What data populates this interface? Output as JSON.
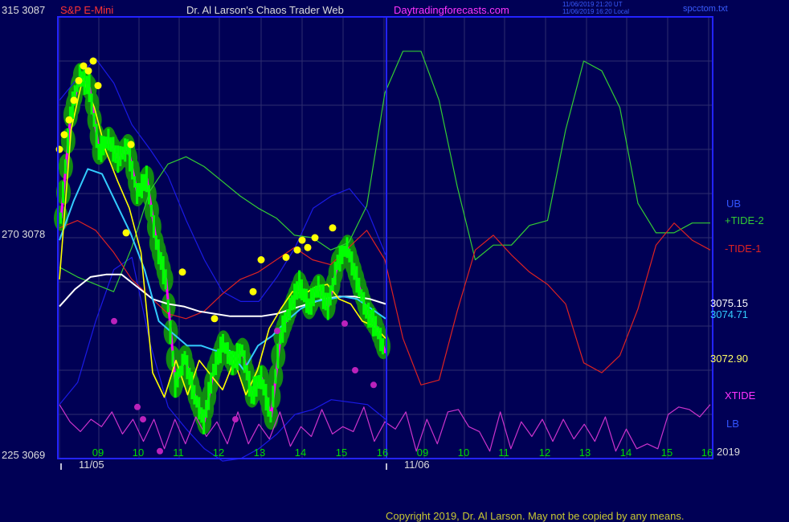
{
  "header": {
    "left_scale": "315  3087",
    "symbol": "S&P E-Mini",
    "title": "Dr. Al Larson's Chaos Trader Web",
    "site": "Daytradingforecasts.com",
    "stamp_utc": "11/06/2019 21:20 UT",
    "stamp_local": "11/06/2019 16:20 Local",
    "file": "spcctom.txt"
  },
  "left_axis": {
    "mid": "270  3078",
    "bottom": "225  3069"
  },
  "right_labels": {
    "ub": "UB",
    "tide2": "+TIDE-2",
    "tide1": "-TIDE-1",
    "white_val": "3075.15",
    "cyan_val": "3074.71",
    "low_val": "3072.90",
    "xtide": "XTIDE",
    "lb": "LB",
    "year": "2019"
  },
  "x_axis": {
    "hours": [
      "09",
      "10",
      "11",
      "12",
      "13",
      "14",
      "15",
      "16",
      "09",
      "10",
      "11",
      "12",
      "13",
      "14",
      "15",
      "16"
    ],
    "dates": [
      "11/05",
      "11/06"
    ]
  },
  "copyright": "Copyright 2019, Dr. Al Larson. May not be copied by any means.",
  "colors": {
    "background": "#000055",
    "frame": "#2323ff",
    "grid": "#2e2e70",
    "price": "#ff00ff",
    "bars": "#00ff00",
    "halo": "#118a11",
    "yellow": "#ffff00",
    "cyan": "#33ccff",
    "white": "#ffffff",
    "tide2": "#33cc33",
    "tide1": "#dd2222",
    "xtide": "#cc33cc",
    "bands": "#1a1ae6",
    "magenta_dot": "#bb22bb"
  },
  "chart_data": {
    "type": "line",
    "title": "S&P E-Mini",
    "ylim": [
      3069,
      3087
    ],
    "y_ticks": [
      3069,
      3078,
      3087
    ],
    "x_label_ticks": [
      "09",
      "10",
      "11",
      "12",
      "13",
      "14",
      "15",
      "16",
      "09",
      "10",
      "11",
      "12",
      "13",
      "14",
      "15",
      "16"
    ],
    "last_values": {
      "white": 3075.15,
      "cyan": 3074.71,
      "low": 3072.9
    },
    "series": [
      {
        "name": "+TIDE-2",
        "values": [
          3076.8,
          3076.4,
          3076.1,
          3075.8,
          3077.6,
          3079.9,
          3081.0,
          3081.3,
          3080.9,
          3080.3,
          3079.7,
          3079.2,
          3078.8,
          3078.1,
          3078.0,
          3077.5,
          3077.8,
          3079.3,
          3083.9,
          3085.6,
          3085.6,
          3083.6,
          3080.1,
          3077.1,
          3077.7,
          3077.7,
          3078.5,
          3078.7,
          3082.4,
          3085.2,
          3084.8,
          3083.3,
          3079.4,
          3078.2,
          3078.2,
          3078.6,
          3078.6
        ]
      },
      {
        "name": "-TIDE-1",
        "values": [
          3078.4,
          3078.7,
          3078.3,
          3077.4,
          3076.3,
          3075.6,
          3074.9,
          3074.7,
          3075.0,
          3075.7,
          3076.3,
          3076.6,
          3077.1,
          3077.6,
          3077.1,
          3076.9,
          3077.6,
          3078.3,
          3077.1,
          3073.9,
          3072.0,
          3072.2,
          3075.0,
          3077.5,
          3078.1,
          3077.3,
          3076.6,
          3076.1,
          3075.3,
          3072.9,
          3072.5,
          3073.2,
          3075.1,
          3077.7,
          3078.6,
          3077.9,
          3077.5
        ]
      },
      {
        "name": "UB",
        "values": [
          3083.6,
          3084.5,
          3085.3,
          3084.3,
          3082.6,
          3081.6,
          3080.5,
          3078.7,
          3077.1,
          3075.8,
          3075.4,
          3075.4,
          3076.4,
          3077.6,
          3079.2,
          3079.7,
          3080.0,
          3079.1,
          3077.3
        ]
      },
      {
        "name": "LB",
        "values": [
          3071.2,
          3072.1,
          3074.6,
          3076.7,
          3077.2,
          3073.7,
          3071.1,
          3070.2,
          3069.4,
          3068.9,
          3069.0,
          3069.4,
          3070.0,
          3070.8,
          3071.0,
          3071.4,
          3071.3,
          3071.2,
          3070.6
        ]
      },
      {
        "name": "XTIDE",
        "values": [
          3071.2,
          3070.5,
          3070.1,
          3070.6,
          3070.3,
          3070.9,
          3070.0,
          3070.6,
          3069.7,
          3070.6,
          3069.4,
          3070.6,
          3069.6,
          3070.7,
          3069.9,
          3070.5,
          3069.6,
          3070.9,
          3069.6,
          3070.4,
          3069.8,
          3070.9,
          3069.5,
          3070.3,
          3069.9,
          3071.0,
          3070.0,
          3070.3,
          3070.1,
          3071.1,
          3069.7,
          3070.5,
          3070.2,
          3070.9,
          3069.3,
          3070.6,
          3069.6,
          3070.9,
          3071.0,
          3070.3,
          3070.1,
          3069.3,
          3070.9,
          3069.4,
          3070.5,
          3069.9,
          3070.6,
          3069.7,
          3070.6,
          3069.8,
          3070.4,
          3069.7,
          3070.7,
          3069.3,
          3070.2,
          3069.4,
          3069.6,
          3069.4,
          3070.8,
          3071.1,
          3071.0,
          3070.7,
          3071.2
        ]
      },
      {
        "name": "yellow",
        "values": [
          3076.3,
          3082.4,
          3084.5,
          3083.3,
          3081.5,
          3080.3,
          3079.2,
          3077.4,
          3072.5,
          3071.5,
          3073.0,
          3071.6,
          3073.0,
          3072.4,
          3071.8,
          3073.0,
          3071.6,
          3072.6,
          3074.3,
          3075.1,
          3075.8,
          3075.7,
          3076.0,
          3076.1,
          3075.5,
          3075.3,
          3074.6,
          3074.4,
          3073.9
        ]
      },
      {
        "name": "cyan",
        "values": [
          3077.9,
          3079.5,
          3080.8,
          3080.6,
          3079.4,
          3078.2,
          3076.7,
          3074.6,
          3074.1,
          3073.6,
          3073.6,
          3073.4,
          3073.4,
          3072.6,
          3073.6,
          3074.0,
          3074.6,
          3075.1,
          3075.4,
          3075.5,
          3075.6,
          3075.5,
          3075.1,
          3074.7
        ]
      },
      {
        "name": "white",
        "values": [
          3075.2,
          3075.9,
          3076.4,
          3076.5,
          3076.5,
          3076.0,
          3075.5,
          3075.3,
          3075.2,
          3075.0,
          3074.9,
          3074.8,
          3074.8,
          3074.8,
          3074.9,
          3075.1,
          3075.3,
          3075.5,
          3075.6,
          3075.6,
          3075.5,
          3075.3
        ]
      },
      {
        "name": "price",
        "values": [
          3078.8,
          3083.0,
          3084.6,
          3084.1,
          3081.5,
          3082.0,
          3081.2,
          3081.7,
          3079.8,
          3080.4,
          3077.8,
          3076.3,
          3072.0,
          3073.1,
          3071.6,
          3070.5,
          3072.6,
          3073.7,
          3072.9,
          3073.4,
          3071.6,
          3072.3,
          3070.7,
          3074.0,
          3075.1,
          3076.1,
          3075.2,
          3076.0,
          3075.2,
          3077.0,
          3077.6,
          3076.3,
          3075.0,
          3074.4,
          3073.3
        ]
      }
    ]
  }
}
